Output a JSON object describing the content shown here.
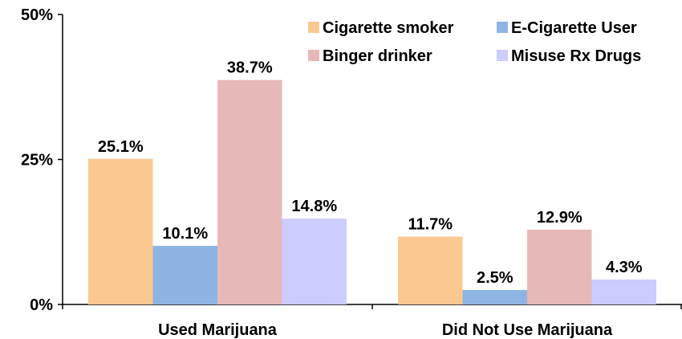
{
  "chart_data": {
    "type": "bar",
    "title": "",
    "xlabel": "",
    "ylabel": "",
    "categories": [
      "Used Marijuana",
      "Did Not Use Marijuana"
    ],
    "series": [
      {
        "name": "Cigarette smoker",
        "color": "#fcc891",
        "values": [
          25.1,
          11.7
        ],
        "labels": [
          "25.1%",
          "11.7%"
        ]
      },
      {
        "name": "E-Cigarette User",
        "color": "#8eb4e3",
        "values": [
          10.1,
          2.5
        ],
        "labels": [
          "10.1%",
          "2.5%"
        ]
      },
      {
        "name": "Binger drinker",
        "color": "#e6b9b8",
        "values": [
          38.7,
          12.9
        ],
        "labels": [
          "38.7%",
          "12.9%"
        ]
      },
      {
        "name": "Misuse Rx Drugs",
        "color": "#ccccff",
        "values": [
          14.8,
          4.3
        ],
        "labels": [
          "14.8%",
          "4.3%"
        ]
      }
    ],
    "ylim": [
      0,
      50
    ],
    "yticks": [
      {
        "value": 0,
        "label": "0%"
      },
      {
        "value": 25,
        "label": "25%"
      },
      {
        "value": 50,
        "label": "50%"
      }
    ],
    "grid": false,
    "legend": {
      "position": "top-right",
      "columns": 2
    }
  }
}
